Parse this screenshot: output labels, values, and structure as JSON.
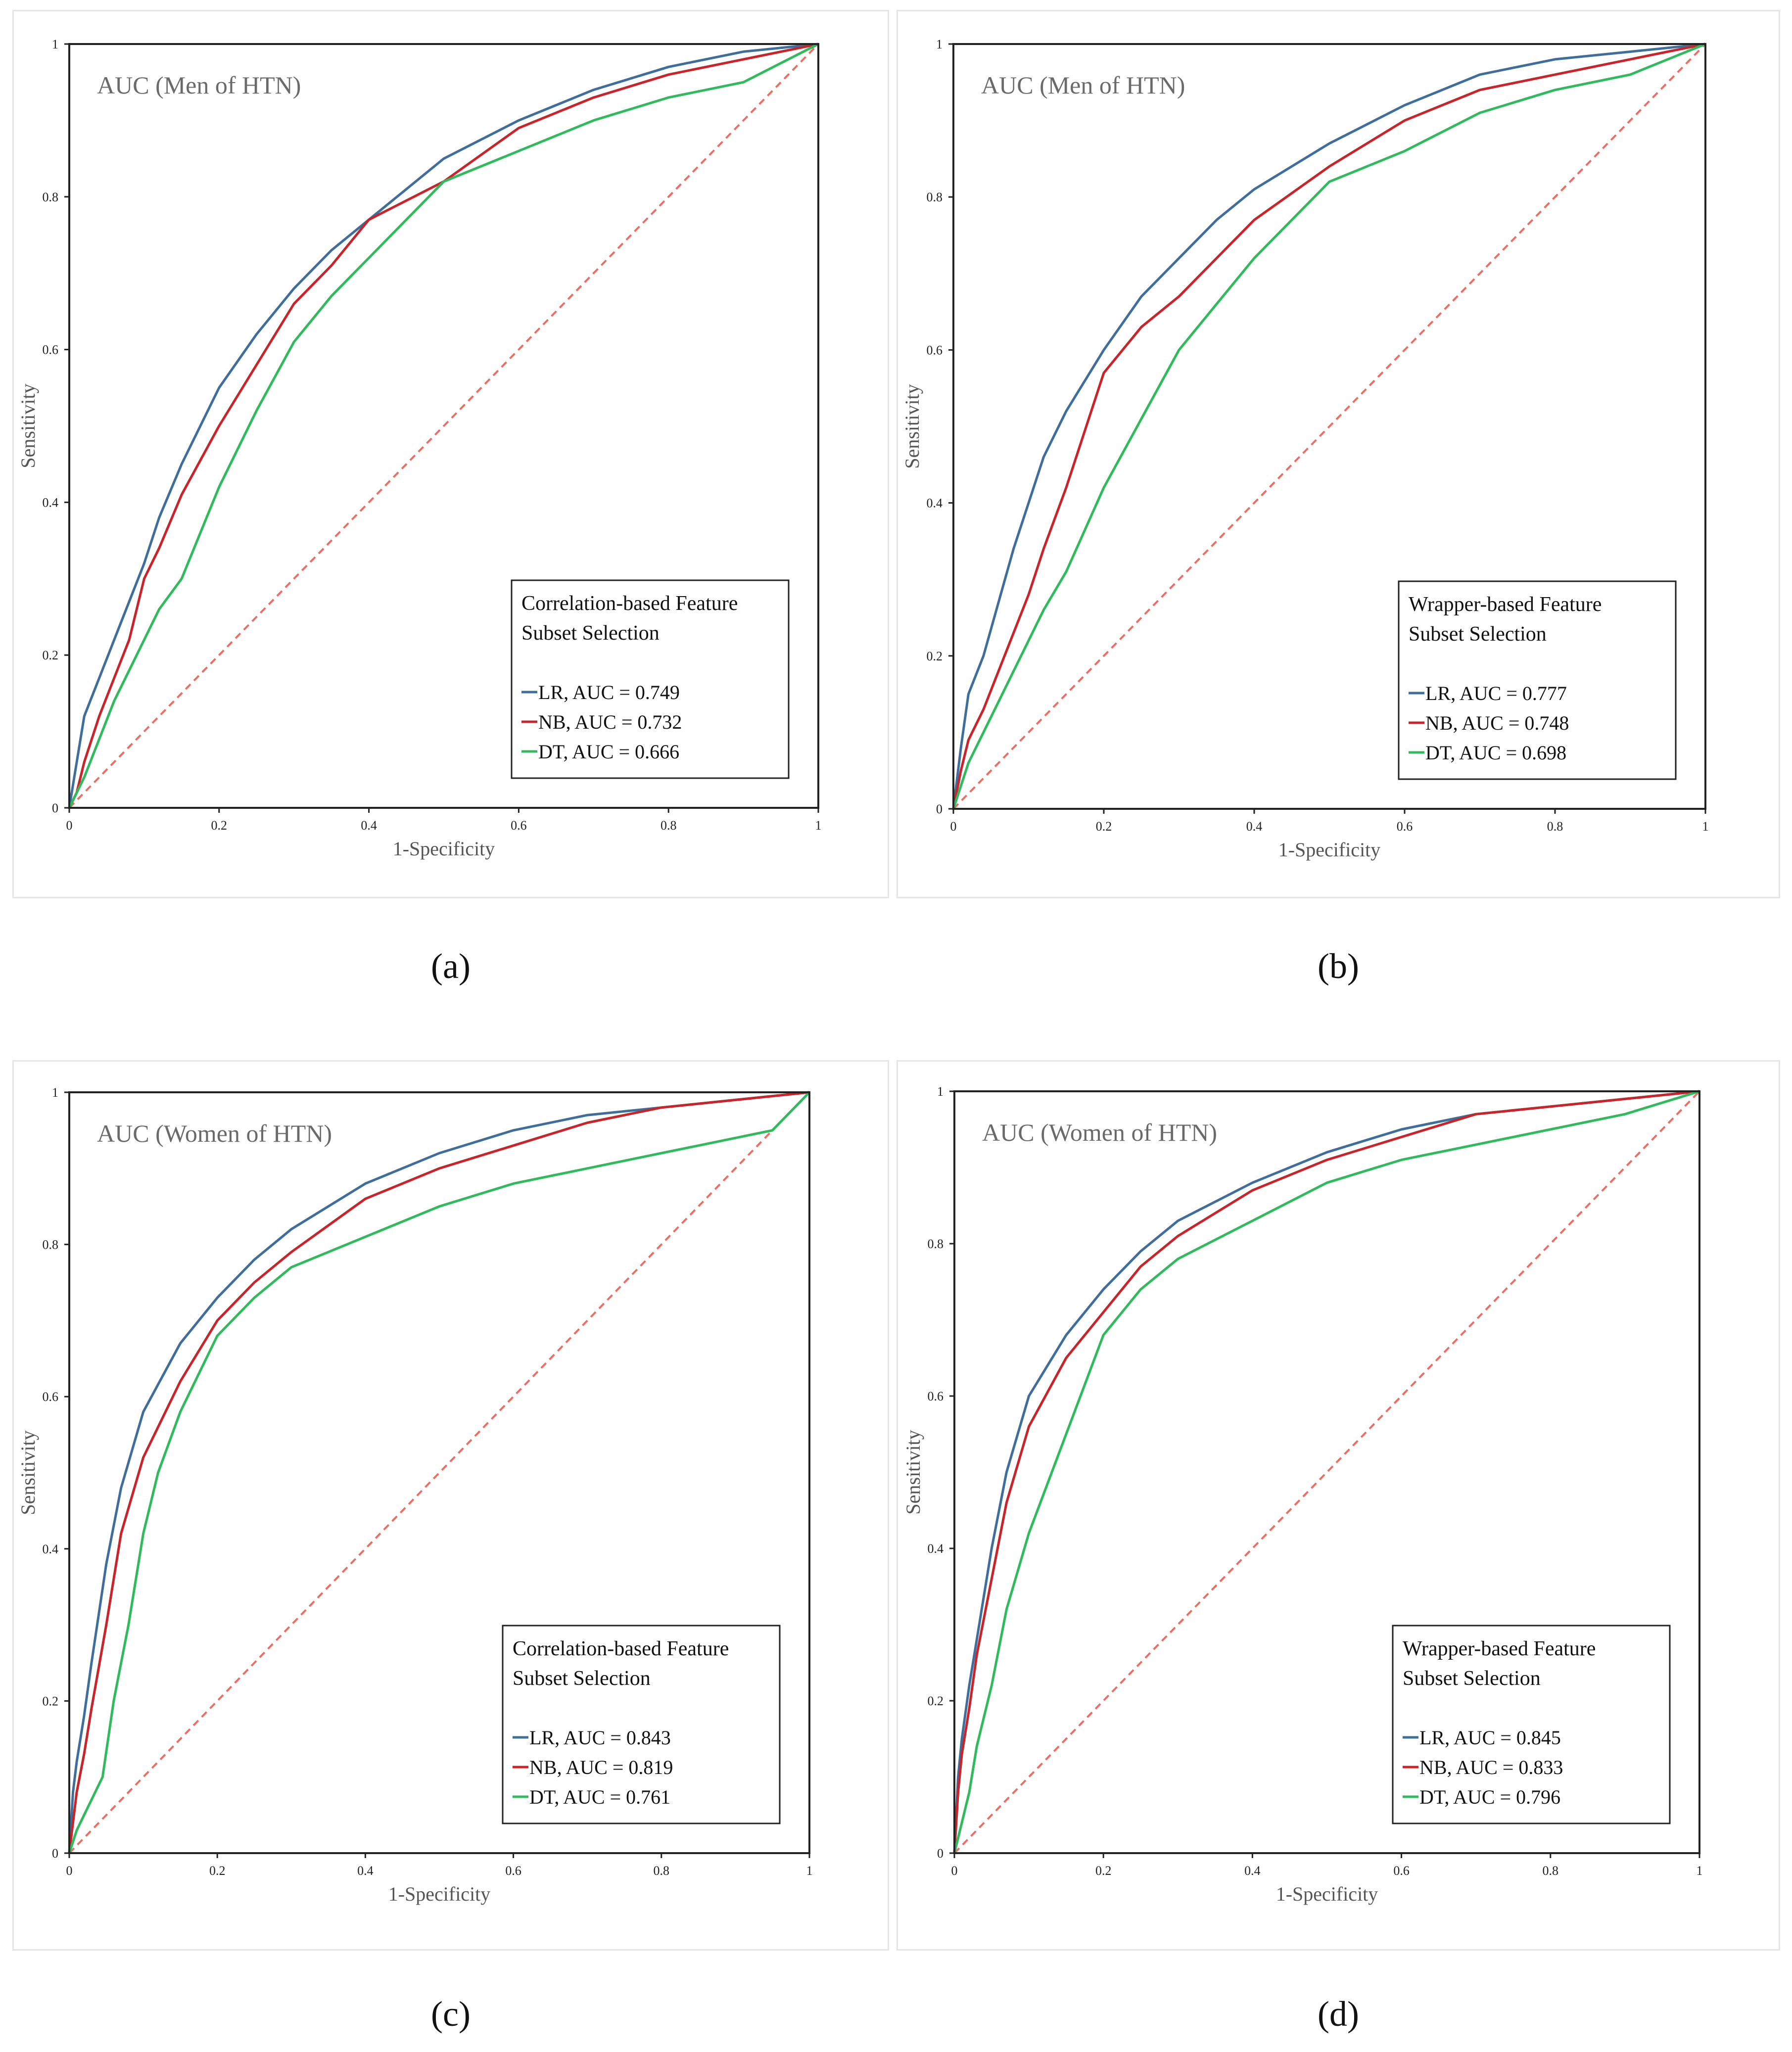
{
  "colors": {
    "lr": "#3f6e9d",
    "nb": "#c9242a",
    "dt": "#2fba5b",
    "diagonal": "#ef6c63",
    "axis": "#222222",
    "label": "#555555"
  },
  "captions": [
    "(a)",
    "(b)",
    "(c)",
    "(d)"
  ],
  "chart_data": [
    {
      "type": "line",
      "title": "AUC (Men of HTN)",
      "xlabel": "1-Specificity",
      "ylabel": "Sensitivity",
      "xlim": [
        0,
        1
      ],
      "ylim": [
        0,
        1
      ],
      "xticks": [
        "0",
        "0.2",
        "0.4",
        "0.6",
        "0.8",
        "1"
      ],
      "yticks": [
        "0",
        "0.2",
        "0.4",
        "0.6",
        "0.8",
        "1"
      ],
      "legend": {
        "title_line1": "Correlation-based Feature",
        "title_line2": "Subset Selection",
        "entries": [
          "LR, AUC = 0.749",
          "NB, AUC = 0.732",
          "DT, AUC = 0.666"
        ],
        "placement": "bottom-right"
      },
      "series": [
        {
          "name": "LR",
          "auc": 0.749,
          "x": [
            0,
            0.01,
            0.02,
            0.04,
            0.06,
            0.08,
            0.1,
            0.12,
            0.15,
            0.2,
            0.25,
            0.3,
            0.35,
            0.4,
            0.5,
            0.6,
            0.7,
            0.8,
            0.9,
            1
          ],
          "y": [
            0,
            0.06,
            0.12,
            0.17,
            0.22,
            0.27,
            0.32,
            0.38,
            0.45,
            0.55,
            0.62,
            0.68,
            0.73,
            0.77,
            0.85,
            0.9,
            0.94,
            0.97,
            0.99,
            1
          ]
        },
        {
          "name": "NB",
          "auc": 0.732,
          "x": [
            0,
            0.01,
            0.02,
            0.04,
            0.06,
            0.08,
            0.1,
            0.12,
            0.15,
            0.2,
            0.25,
            0.3,
            0.35,
            0.4,
            0.5,
            0.6,
            0.7,
            0.8,
            0.9,
            1
          ],
          "y": [
            0,
            0.02,
            0.06,
            0.12,
            0.17,
            0.22,
            0.3,
            0.34,
            0.41,
            0.5,
            0.58,
            0.66,
            0.71,
            0.77,
            0.82,
            0.89,
            0.93,
            0.96,
            0.98,
            1
          ]
        },
        {
          "name": "DT",
          "auc": 0.666,
          "x": [
            0,
            0.01,
            0.02,
            0.04,
            0.06,
            0.08,
            0.1,
            0.12,
            0.15,
            0.2,
            0.25,
            0.3,
            0.35,
            0.4,
            0.5,
            0.6,
            0.7,
            0.8,
            0.9,
            1
          ],
          "y": [
            0,
            0.02,
            0.04,
            0.09,
            0.14,
            0.18,
            0.22,
            0.26,
            0.3,
            0.42,
            0.52,
            0.61,
            0.67,
            0.72,
            0.82,
            0.86,
            0.9,
            0.93,
            0.95,
            1
          ]
        }
      ]
    },
    {
      "type": "line",
      "title": "AUC (Men of HTN)",
      "xlabel": "1-Specificity",
      "ylabel": "Sensitivity",
      "xlim": [
        0,
        1
      ],
      "ylim": [
        0,
        1
      ],
      "xticks": [
        "0",
        "0.2",
        "0.4",
        "0.6",
        "0.8",
        "1"
      ],
      "yticks": [
        "0",
        "0.2",
        "0.4",
        "0.6",
        "0.8",
        "1"
      ],
      "legend": {
        "title_line1": "Wrapper-based Feature",
        "title_line2": "Subset Selection",
        "entries": [
          "LR, AUC = 0.777",
          "NB, AUC = 0.748",
          "DT, AUC = 0.698"
        ],
        "placement": "bottom-right"
      },
      "series": [
        {
          "name": "LR",
          "auc": 0.777,
          "x": [
            0,
            0.01,
            0.02,
            0.04,
            0.06,
            0.08,
            0.1,
            0.12,
            0.15,
            0.2,
            0.25,
            0.3,
            0.35,
            0.4,
            0.5,
            0.6,
            0.7,
            0.8,
            0.9,
            1
          ],
          "y": [
            0,
            0.08,
            0.15,
            0.2,
            0.27,
            0.34,
            0.4,
            0.46,
            0.52,
            0.6,
            0.67,
            0.72,
            0.77,
            0.81,
            0.87,
            0.92,
            0.96,
            0.98,
            0.99,
            1
          ]
        },
        {
          "name": "NB",
          "auc": 0.748,
          "x": [
            0,
            0.01,
            0.02,
            0.04,
            0.06,
            0.08,
            0.1,
            0.12,
            0.15,
            0.2,
            0.25,
            0.3,
            0.35,
            0.4,
            0.5,
            0.6,
            0.7,
            0.8,
            0.9,
            1
          ],
          "y": [
            0,
            0.05,
            0.09,
            0.13,
            0.18,
            0.23,
            0.28,
            0.34,
            0.42,
            0.57,
            0.63,
            0.67,
            0.72,
            0.77,
            0.84,
            0.9,
            0.94,
            0.96,
            0.98,
            1
          ]
        },
        {
          "name": "DT",
          "auc": 0.698,
          "x": [
            0,
            0.01,
            0.02,
            0.04,
            0.06,
            0.08,
            0.1,
            0.12,
            0.15,
            0.2,
            0.25,
            0.3,
            0.35,
            0.4,
            0.5,
            0.6,
            0.7,
            0.8,
            0.9,
            1
          ],
          "y": [
            0,
            0.03,
            0.06,
            0.1,
            0.14,
            0.18,
            0.22,
            0.26,
            0.31,
            0.42,
            0.51,
            0.6,
            0.66,
            0.72,
            0.82,
            0.86,
            0.91,
            0.94,
            0.96,
            1
          ]
        }
      ]
    },
    {
      "type": "line",
      "title": "AUC (Women of HTN)",
      "xlabel": "1-Specificity",
      "ylabel": "Sensitivity",
      "xlim": [
        0,
        1
      ],
      "ylim": [
        0,
        1
      ],
      "xticks": [
        "0",
        "0.2",
        "0.4",
        "0.6",
        "0.8",
        "1"
      ],
      "yticks": [
        "0",
        "0.2",
        "0.4",
        "0.6",
        "0.8",
        "1"
      ],
      "legend": {
        "title_line1": "Correlation-based Feature",
        "title_line2": "Subset Selection",
        "entries": [
          "LR, AUC = 0.843",
          "NB, AUC = 0.819",
          "DT, AUC = 0.761"
        ],
        "placement": "bottom-right"
      },
      "series": [
        {
          "name": "LR",
          "auc": 0.843,
          "x": [
            0,
            0.005,
            0.01,
            0.02,
            0.03,
            0.05,
            0.07,
            0.1,
            0.15,
            0.2,
            0.25,
            0.3,
            0.4,
            0.5,
            0.6,
            0.7,
            0.8,
            0.9,
            1
          ],
          "y": [
            0,
            0.08,
            0.12,
            0.18,
            0.25,
            0.38,
            0.48,
            0.58,
            0.67,
            0.73,
            0.78,
            0.82,
            0.88,
            0.92,
            0.95,
            0.97,
            0.98,
            0.99,
            1
          ]
        },
        {
          "name": "NB",
          "auc": 0.819,
          "x": [
            0,
            0.005,
            0.01,
            0.02,
            0.03,
            0.05,
            0.07,
            0.1,
            0.15,
            0.2,
            0.25,
            0.3,
            0.4,
            0.5,
            0.6,
            0.7,
            0.8,
            0.9,
            1
          ],
          "y": [
            0,
            0.04,
            0.08,
            0.13,
            0.19,
            0.3,
            0.42,
            0.52,
            0.62,
            0.7,
            0.75,
            0.79,
            0.86,
            0.9,
            0.93,
            0.96,
            0.98,
            0.99,
            1
          ]
        },
        {
          "name": "DT",
          "auc": 0.761,
          "x": [
            0,
            0.01,
            0.02,
            0.03,
            0.045,
            0.06,
            0.08,
            0.1,
            0.12,
            0.15,
            0.2,
            0.25,
            0.3,
            0.4,
            0.5,
            0.6,
            0.7,
            0.8,
            0.9,
            0.95,
            1
          ],
          "y": [
            0,
            0.03,
            0.05,
            0.07,
            0.1,
            0.2,
            0.3,
            0.42,
            0.5,
            0.58,
            0.68,
            0.73,
            0.77,
            0.81,
            0.85,
            0.88,
            0.9,
            0.92,
            0.94,
            0.95,
            1
          ]
        }
      ]
    },
    {
      "type": "line",
      "title": "AUC (Women of HTN)",
      "xlabel": "1-Specificity",
      "ylabel": "Sensitivity",
      "xlim": [
        0,
        1
      ],
      "ylim": [
        0,
        1
      ],
      "xticks": [
        "0",
        "0.2",
        "0.4",
        "0.6",
        "0.8",
        "1"
      ],
      "yticks": [
        "0",
        "0.2",
        "0.4",
        "0.6",
        "0.8",
        "1"
      ],
      "legend": {
        "title_line1": "Wrapper-based Feature",
        "title_line2": "Subset Selection",
        "entries": [
          "LR, AUC = 0.845",
          "NB, AUC = 0.833",
          "DT, AUC = 0.796"
        ],
        "placement": "bottom-right"
      },
      "series": [
        {
          "name": "LR",
          "auc": 0.845,
          "x": [
            0,
            0.005,
            0.01,
            0.02,
            0.03,
            0.05,
            0.07,
            0.1,
            0.15,
            0.2,
            0.25,
            0.3,
            0.4,
            0.5,
            0.6,
            0.7,
            0.8,
            0.9,
            1
          ],
          "y": [
            0,
            0.1,
            0.15,
            0.22,
            0.28,
            0.4,
            0.5,
            0.6,
            0.68,
            0.74,
            0.79,
            0.83,
            0.88,
            0.92,
            0.95,
            0.97,
            0.98,
            0.99,
            1
          ]
        },
        {
          "name": "NB",
          "auc": 0.833,
          "x": [
            0,
            0.005,
            0.01,
            0.02,
            0.03,
            0.05,
            0.07,
            0.1,
            0.15,
            0.2,
            0.25,
            0.3,
            0.4,
            0.5,
            0.6,
            0.7,
            0.8,
            0.9,
            1
          ],
          "y": [
            0,
            0.08,
            0.13,
            0.19,
            0.26,
            0.36,
            0.46,
            0.56,
            0.65,
            0.71,
            0.77,
            0.81,
            0.87,
            0.91,
            0.94,
            0.97,
            0.98,
            0.99,
            1
          ]
        },
        {
          "name": "DT",
          "auc": 0.796,
          "x": [
            0,
            0.005,
            0.01,
            0.02,
            0.03,
            0.05,
            0.07,
            0.1,
            0.15,
            0.2,
            0.25,
            0.3,
            0.4,
            0.5,
            0.6,
            0.7,
            0.8,
            0.9,
            1
          ],
          "y": [
            0,
            0.02,
            0.04,
            0.08,
            0.14,
            0.22,
            0.32,
            0.42,
            0.55,
            0.68,
            0.74,
            0.78,
            0.83,
            0.88,
            0.91,
            0.93,
            0.95,
            0.97,
            1
          ]
        }
      ]
    }
  ]
}
